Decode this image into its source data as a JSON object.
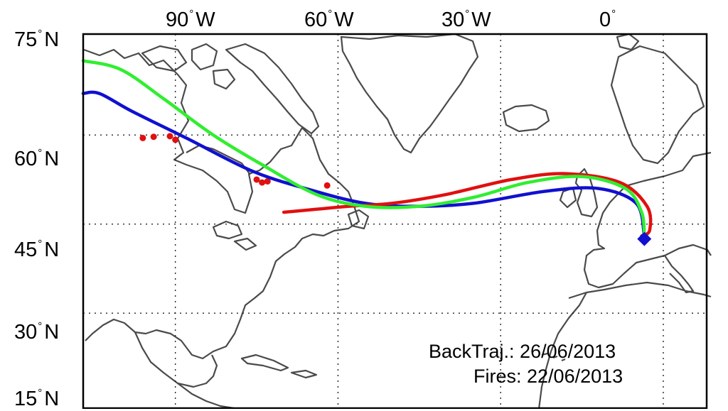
{
  "map": {
    "lat_labels": [
      {
        "deg": "75",
        "hem": "N"
      },
      {
        "deg": "60",
        "hem": "N"
      },
      {
        "deg": "45",
        "hem": "N"
      },
      {
        "deg": "30",
        "hem": "N"
      },
      {
        "deg": "15",
        "hem": "N"
      }
    ],
    "lon_labels": [
      {
        "deg": "90",
        "hem": "W"
      },
      {
        "deg": "60",
        "hem": "W"
      },
      {
        "deg": "30",
        "hem": "W"
      },
      {
        "deg": "0",
        "hem": ""
      }
    ],
    "degree_symbol": "°",
    "grid": true,
    "grid_lats": [
      60,
      45,
      30
    ],
    "grid_lons": [
      -90,
      -60,
      -30,
      0
    ],
    "extent": {
      "lon": [
        -107,
        8
      ],
      "lat": [
        14,
        77
      ]
    },
    "annotation": {
      "backtraj_label": "BackTraj.:",
      "backtraj_date": "26/06/2013",
      "fires_label": "Fires:",
      "fires_date": "22/06/2013"
    },
    "colors": {
      "coast": "#4a4a4a",
      "blue": "#1010d0",
      "green": "#30ee30",
      "red": "#e01010",
      "marker": "#1010d0",
      "fire": "#e01010"
    },
    "marker_icon": "diamond-icon",
    "trajectories": [
      {
        "color": "blue",
        "points": [
          [
            -107,
            67
          ],
          [
            -104,
            67
          ],
          [
            -98,
            64
          ],
          [
            -88,
            59.5
          ],
          [
            -76,
            54
          ],
          [
            -66,
            51
          ],
          [
            -55,
            48.5
          ],
          [
            -45,
            48
          ],
          [
            -35,
            48.5
          ],
          [
            -22,
            50.5
          ],
          [
            -12,
            51
          ],
          [
            -5,
            48.5
          ],
          [
            -3.5,
            43
          ]
        ]
      },
      {
        "color": "red",
        "points": [
          [
            -70,
            47
          ],
          [
            -64,
            47.5
          ],
          [
            -58,
            48
          ],
          [
            -50,
            48.5
          ],
          [
            -40,
            50
          ],
          [
            -28,
            52.5
          ],
          [
            -18,
            53.5
          ],
          [
            -8,
            52
          ],
          [
            -3,
            48
          ],
          [
            -2.5,
            44
          ],
          [
            -4,
            43
          ]
        ]
      },
      {
        "color": "green",
        "points": [
          [
            -107,
            72.5
          ],
          [
            -100,
            71
          ],
          [
            -92,
            66
          ],
          [
            -83,
            60
          ],
          [
            -74,
            55
          ],
          [
            -64,
            50
          ],
          [
            -55,
            48
          ],
          [
            -45,
            48
          ],
          [
            -35,
            49.5
          ],
          [
            -25,
            52
          ],
          [
            -15,
            53
          ],
          [
            -7,
            51
          ],
          [
            -4,
            47
          ],
          [
            -3.5,
            43
          ]
        ]
      }
    ],
    "marker": [
      -3.5,
      42.5
    ],
    "fires": [
      [
        -96,
        59.5
      ],
      [
        -94,
        59.7
      ],
      [
        -91,
        59.8
      ],
      [
        -90,
        59.2
      ],
      [
        -75,
        52.5
      ],
      [
        -74,
        52
      ],
      [
        -73,
        52.2
      ],
      [
        -62,
        51.5
      ]
    ]
  }
}
